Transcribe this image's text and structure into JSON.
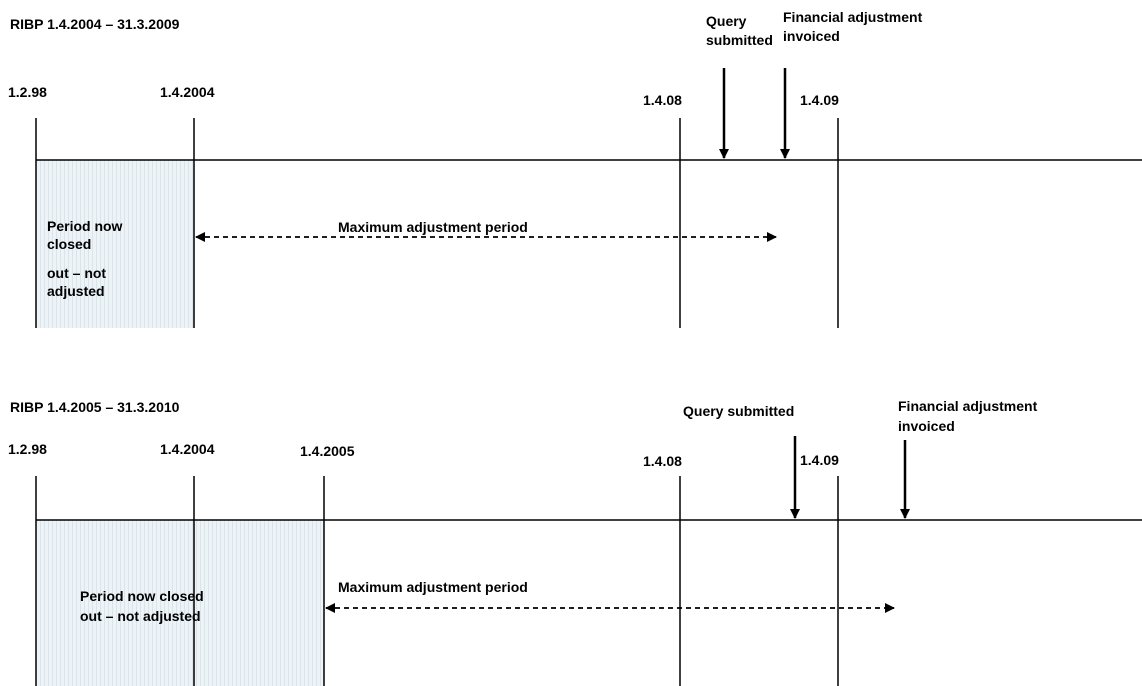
{
  "colors": {
    "ink": "#000000",
    "shade_fill": "#eef3f8",
    "shade_hatch": "#c6d4e2"
  },
  "diagrams": [
    {
      "title": "RIBP 1.4.2004 – 31.3.2009",
      "dates": [
        "1.2.98",
        "1.4.2004",
        "1.4.08",
        "1.4.09"
      ],
      "closed_label": [
        "Period now",
        "closed",
        "out – not",
        "adjusted"
      ],
      "adjustment_label": "Maximum adjustment period",
      "query_label": [
        "Query",
        "submitted"
      ],
      "invoiced_label": [
        "Financial adjustment",
        "invoiced"
      ]
    },
    {
      "title": "RIBP 1.4.2005 – 31.3.2010",
      "dates": [
        "1.2.98",
        "1.4.2004",
        "1.4.2005",
        "1.4.08",
        "1.4.09"
      ],
      "closed_label": [
        "Period now closed",
        "out – not adjusted"
      ],
      "adjustment_label": "Maximum adjustment period",
      "query_label": [
        "Query submitted"
      ],
      "invoiced_label": [
        "Financial adjustment",
        "invoiced"
      ]
    }
  ]
}
